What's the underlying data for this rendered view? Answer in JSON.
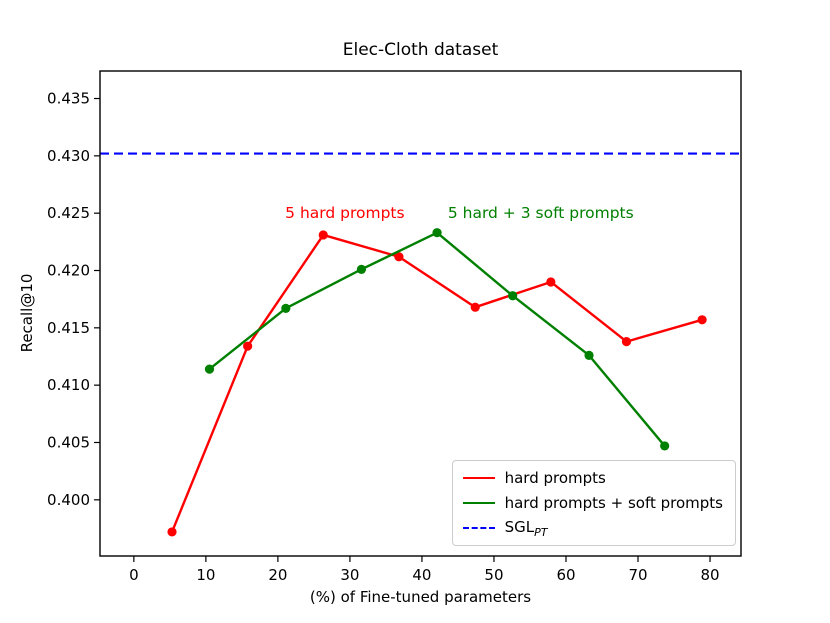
{
  "chart_data": {
    "type": "line",
    "title": "Elec-Cloth dataset",
    "xlabel": "(%) of Fine-tuned parameters",
    "ylabel": "Recall@10",
    "xlim": [
      -4.7,
      84.3
    ],
    "ylim": [
      0.3951,
      0.4374
    ],
    "grid": false,
    "legend_position": "lower right",
    "xticks": [
      0,
      10,
      20,
      30,
      40,
      50,
      60,
      70,
      80
    ],
    "xtick_labels": [
      "0",
      "10",
      "20",
      "30",
      "40",
      "50",
      "60",
      "70",
      "80"
    ],
    "yticks": [
      0.4,
      0.405,
      0.41,
      0.415,
      0.42,
      0.425,
      0.43,
      0.435
    ],
    "ytick_labels": [
      "0.400",
      "0.405",
      "0.410",
      "0.415",
      "0.420",
      "0.425",
      "0.430",
      "0.435"
    ],
    "series": [
      {
        "name": "hard prompts",
        "color": "#ff0000",
        "style": "solid",
        "marker": "circle",
        "x": [
          5.3,
          15.8,
          26.3,
          36.8,
          47.4,
          57.9,
          68.4,
          78.9
        ],
        "y": [
          0.3972,
          0.4134,
          0.4231,
          0.4212,
          0.4168,
          0.419,
          0.4138,
          0.4157
        ]
      },
      {
        "name": "hard prompts + soft prompts",
        "color": "#008000",
        "style": "solid",
        "marker": "circle",
        "x": [
          10.5,
          21.1,
          31.6,
          42.1,
          52.6,
          63.2,
          73.7
        ],
        "y": [
          0.4114,
          0.4167,
          0.4201,
          0.4233,
          0.4178,
          0.4126,
          0.4047
        ]
      },
      {
        "name": "SGL",
        "name_sub": "PT",
        "color": "#0000ff",
        "style": "dashed",
        "marker": "none",
        "hline": 0.4302
      }
    ],
    "annotations": [
      {
        "text": "5 hard prompts",
        "x": 29.3,
        "y": 0.4246,
        "color": "#ff0000",
        "anchor": "middle"
      },
      {
        "text": "5 hard + 3 soft prompts",
        "x": 56.5,
        "y": 0.4246,
        "color": "#008000",
        "anchor": "middle"
      }
    ]
  }
}
